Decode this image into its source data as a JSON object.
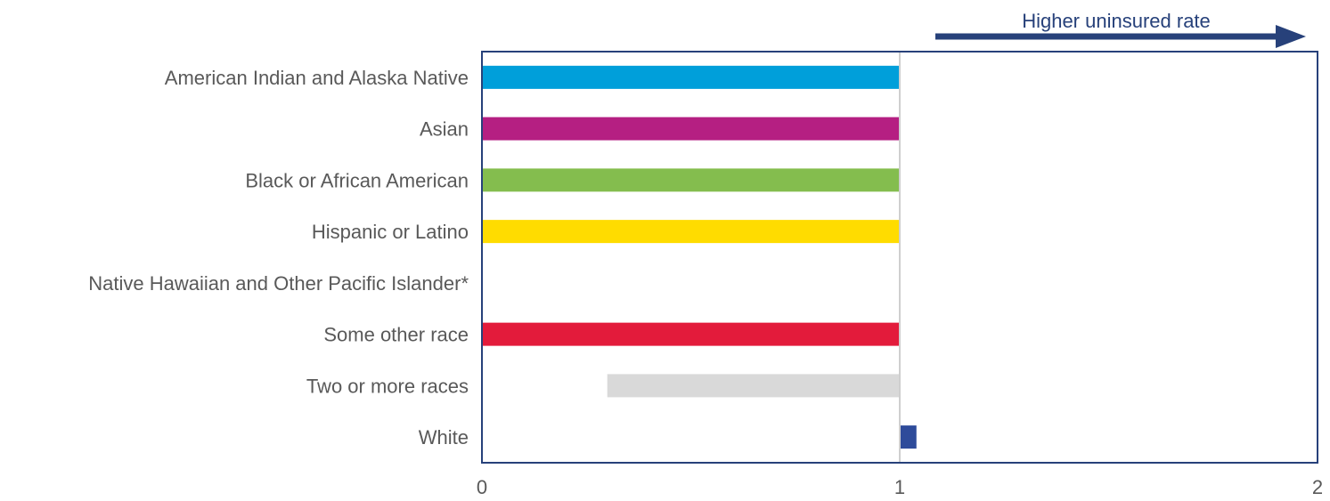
{
  "chart_data": {
    "type": "bar",
    "orientation": "horizontal",
    "reference_value": 1,
    "categories": [
      "American Indian and Alaska Native",
      "Asian",
      "Black or African American",
      "Hispanic or Latino",
      "Native Hawaiian and Other Pacific Islander*",
      "Some other race",
      "Two or more races",
      "White"
    ],
    "values": [
      0,
      0,
      0,
      0,
      null,
      0,
      0.3,
      1.04
    ],
    "colors": [
      "#009fda",
      "#b51f82",
      "#84bd4e",
      "#ffdc00",
      "#ffffff",
      "#e31b3b",
      "#d9d9d9",
      "#2e4b9a"
    ],
    "x_ticks": [
      "0",
      "1",
      "2"
    ],
    "xlim": [
      0,
      2
    ],
    "annotation": {
      "text": "Higher uninsured rate",
      "direction": "right",
      "color": "#27417a"
    },
    "frame_color": "#27417a",
    "reference_line_color": "#cfcfcf",
    "grid": false,
    "legend": "none"
  }
}
